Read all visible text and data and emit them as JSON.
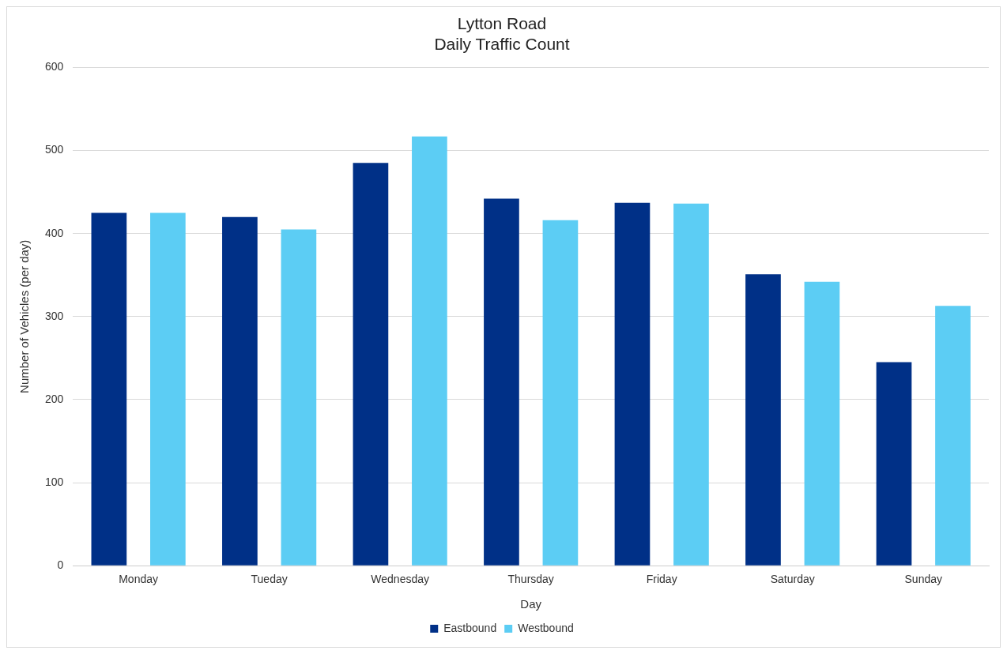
{
  "chart_data": {
    "type": "bar",
    "title": [
      "Lytton Road",
      "Daily Traffic Count"
    ],
    "xlabel": "Day",
    "ylabel": "Number of Vehicles (per day)",
    "categories": [
      "Monday",
      "Tueday",
      "Wednesday",
      "Thursday",
      "Friday",
      "Saturday",
      "Sunday"
    ],
    "series": [
      {
        "name": "Eastbound",
        "color": "#003087",
        "values": [
          425,
          420,
          485,
          442,
          437,
          351,
          245
        ]
      },
      {
        "name": "Westbound",
        "color": "#5ccdf4",
        "values": [
          425,
          405,
          517,
          416,
          436,
          342,
          313
        ]
      }
    ],
    "ylim": [
      0,
      600
    ],
    "yticks": [
      0,
      100,
      200,
      300,
      400,
      500,
      600
    ],
    "grid": "y",
    "legend": "bottom"
  }
}
